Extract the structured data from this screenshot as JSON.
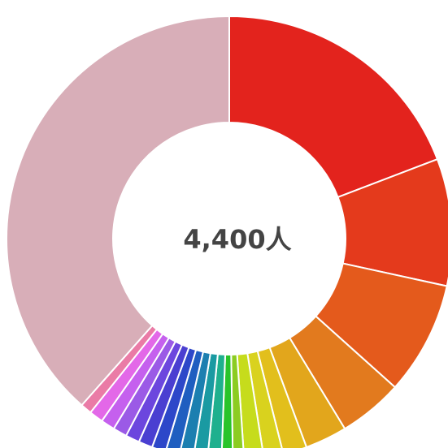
{
  "chart_data": {
    "type": "pie",
    "variant": "donut",
    "center_label": "4,400人",
    "total": 4400,
    "slices": [
      {
        "value": 18.9,
        "color": "#e3231d"
      },
      {
        "value": 9.1,
        "color": "#e43a1c"
      },
      {
        "value": 8.1,
        "color": "#e45a1c"
      },
      {
        "value": 4.6,
        "color": "#e27a1e"
      },
      {
        "value": 3.0,
        "color": "#e2a61c"
      },
      {
        "value": 1.7,
        "color": "#e2bf1c"
      },
      {
        "value": 1.4,
        "color": "#d9d21e"
      },
      {
        "value": 1.4,
        "color": "#c6dc1c"
      },
      {
        "value": 0.8,
        "color": "#8ccc22"
      },
      {
        "value": 0.8,
        "color": "#29c42a"
      },
      {
        "value": 1.0,
        "color": "#1fb08e"
      },
      {
        "value": 1.0,
        "color": "#1a9aa2"
      },
      {
        "value": 1.0,
        "color": "#1c7fb0"
      },
      {
        "value": 1.0,
        "color": "#1f5ec0"
      },
      {
        "value": 1.0,
        "color": "#2d47c9"
      },
      {
        "value": 1.0,
        "color": "#4a3fd1"
      },
      {
        "value": 1.0,
        "color": "#6c46de"
      },
      {
        "value": 1.0,
        "color": "#9b5ae6"
      },
      {
        "value": 1.0,
        "color": "#c560ee"
      },
      {
        "value": 1.0,
        "color": "#e368e8"
      },
      {
        "value": 0.8,
        "color": "#ea7ba6"
      },
      {
        "value": 37.9,
        "color": "#d8aeb8"
      }
    ]
  }
}
